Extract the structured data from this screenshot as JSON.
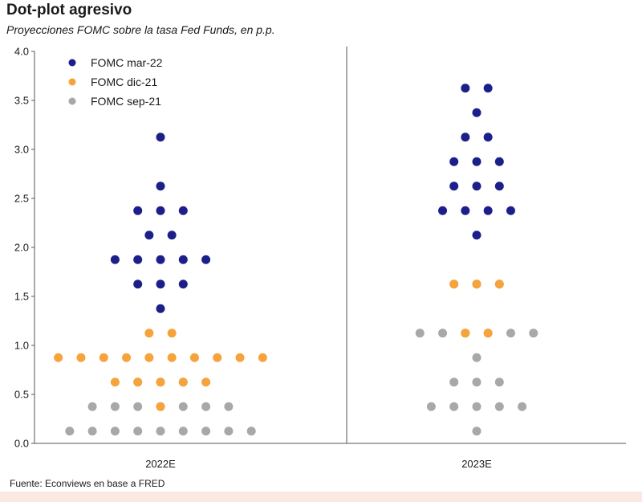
{
  "title": "Dot-plot agresivo",
  "subtitle": "Proyecciones FOMC sobre la tasa Fed Funds, en p.p.",
  "source": "Fuente: Econviews en base a FRED",
  "chart_data": {
    "type": "scatter",
    "title": "Dot-plot agresivo",
    "subtitle": "Proyecciones FOMC sobre la tasa Fed Funds, en p.p.",
    "categories": [
      "2022E",
      "2023E"
    ],
    "ylim": [
      0,
      4
    ],
    "yticks": [
      "0.0",
      "0.5",
      "1.0",
      "1.5",
      "2.0",
      "2.5",
      "3.0",
      "3.5",
      "4.0"
    ],
    "grid": false,
    "legend_position": "top-left",
    "series": [
      {
        "name": "FOMC mar-22",
        "color": "#1c1f8a",
        "points": {
          "2022E": [
            {
              "y": 1.375,
              "count": 1
            },
            {
              "y": 1.625,
              "count": 3
            },
            {
              "y": 1.875,
              "count": 5
            },
            {
              "y": 2.125,
              "count": 2
            },
            {
              "y": 2.375,
              "count": 3
            },
            {
              "y": 2.625,
              "count": 1
            },
            {
              "y": 3.125,
              "count": 1
            }
          ],
          "2023E": [
            {
              "y": 2.125,
              "count": 1
            },
            {
              "y": 2.375,
              "count": 4
            },
            {
              "y": 2.625,
              "count": 3
            },
            {
              "y": 2.875,
              "count": 3
            },
            {
              "y": 3.125,
              "count": 2
            },
            {
              "y": 3.375,
              "count": 1
            },
            {
              "y": 3.625,
              "count": 2
            }
          ]
        }
      },
      {
        "name": "FOMC dic-21",
        "color": "#f5a33a",
        "points": {
          "2022E": [
            {
              "y": 0.375,
              "count": 1
            },
            {
              "y": 0.625,
              "count": 5
            },
            {
              "y": 0.875,
              "count": 10
            },
            {
              "y": 1.125,
              "count": 2
            }
          ],
          "2023E": [
            {
              "y": 1.125,
              "count": 2
            },
            {
              "y": 1.625,
              "count": 3
            }
          ]
        }
      },
      {
        "name": "FOMC sep-21",
        "color": "#a8a8a8",
        "points": {
          "2022E": [
            {
              "y": 0.125,
              "count": 9
            },
            {
              "y": 0.375,
              "count": 7
            },
            {
              "y": 0.625,
              "count": 3
            }
          ],
          "2023E": [
            {
              "y": 0.125,
              "count": 1
            },
            {
              "y": 0.375,
              "count": 5
            },
            {
              "y": 0.625,
              "count": 3
            },
            {
              "y": 0.875,
              "count": 1
            },
            {
              "y": 1.125,
              "count": 6
            },
            {
              "y": 1.625,
              "count": 3
            }
          ]
        }
      }
    ]
  }
}
